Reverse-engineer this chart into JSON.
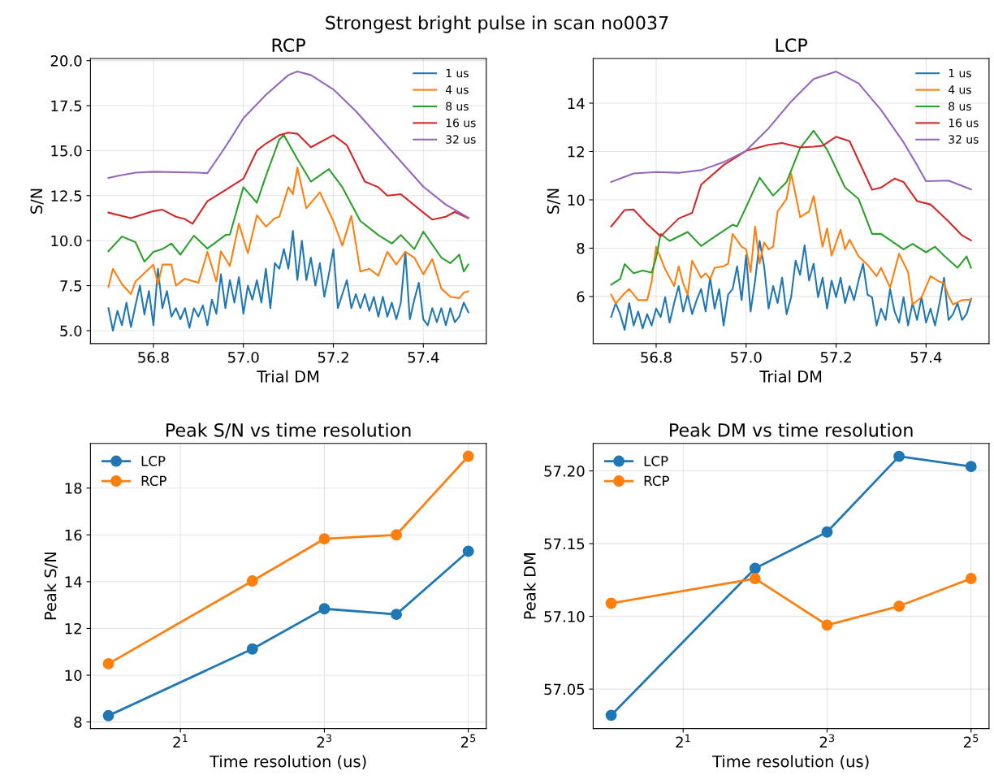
{
  "chart_data": [
    {
      "type": "line",
      "title": "RCP",
      "xlabel": "Trial DM",
      "ylabel": "S/N",
      "annotations": [
        "Strongest bright pulse in scan no0037"
      ],
      "xlim": [
        56.66,
        57.54
      ],
      "ylim": [
        4.28,
        20.12
      ],
      "xticks": [
        {
          "value": 56.8,
          "label": "56.8"
        },
        {
          "value": 57,
          "label": "57.0"
        },
        {
          "value": 57.2,
          "label": "57.2"
        },
        {
          "value": 57.4,
          "label": "57.4"
        }
      ],
      "yticks": [
        {
          "value": 5,
          "label": "5.0"
        },
        {
          "value": 7.5,
          "label": "7.5"
        },
        {
          "value": 10,
          "label": "10.0"
        },
        {
          "value": 12.5,
          "label": "12.5"
        },
        {
          "value": 15,
          "label": "15.0"
        },
        {
          "value": 17.5,
          "label": "17.5"
        },
        {
          "value": 20,
          "label": "20.0"
        }
      ],
      "grid": true,
      "legend": "top right",
      "marker": "none",
      "line_style": "solid",
      "series": [
        {
          "name": "1 us",
          "color": "#1f77b4",
          "x": [
            56.7,
            56.71,
            56.72,
            56.73,
            56.74,
            56.75,
            56.76,
            56.77,
            56.78,
            56.79,
            56.8,
            56.81,
            56.82,
            56.83,
            56.84,
            56.85,
            56.86,
            56.87,
            56.88,
            56.89,
            56.9,
            56.91,
            56.92,
            56.93,
            56.94,
            56.95,
            56.96,
            56.97,
            56.98,
            56.99,
            57.0,
            57.01,
            57.02,
            57.03,
            57.04,
            57.05,
            57.06,
            57.07,
            57.08,
            57.09,
            57.1,
            57.11,
            57.12,
            57.13,
            57.14,
            57.15,
            57.16,
            57.17,
            57.18,
            57.19,
            57.2,
            57.21,
            57.22,
            57.23,
            57.24,
            57.25,
            57.26,
            57.27,
            57.28,
            57.29,
            57.3,
            57.31,
            57.32,
            57.33,
            57.34,
            57.35,
            57.36,
            57.37,
            57.38,
            57.39,
            57.4,
            57.41,
            57.42,
            57.43,
            57.44,
            57.45,
            57.46,
            57.47,
            57.48,
            57.49,
            57.5
          ],
          "values": [
            6.25,
            5.0,
            6.1,
            5.3,
            6.56,
            5.2,
            6.4,
            7.5,
            5.9,
            7.2,
            5.3,
            8.44,
            6.25,
            7.2,
            5.78,
            6.25,
            5.63,
            6.25,
            5.16,
            6.25,
            5.78,
            6.4,
            5.3,
            6.72,
            5.94,
            8.13,
            6.25,
            7.81,
            6.56,
            7.97,
            5.94,
            7.5,
            6.72,
            7.81,
            6.56,
            8.44,
            6.25,
            8.75,
            8.44,
            9.53,
            8.44,
            10.55,
            7.81,
            10.0,
            7.81,
            9.06,
            7.5,
            8.75,
            6.88,
            8.13,
            9.53,
            6.25,
            7.03,
            7.81,
            6.25,
            7.03,
            6.25,
            7.03,
            6.1,
            6.88,
            5.78,
            6.88,
            5.78,
            6.56,
            5.63,
            6.56,
            9.38,
            5.63,
            6.72,
            7.66,
            5.63,
            5.3,
            6.25,
            5.47,
            6.25,
            5.3,
            6.25,
            5.47,
            5.78,
            6.56,
            6.02
          ]
        },
        {
          "name": "4 us",
          "color": "#ff7f0e",
          "x": [
            56.7,
            56.71,
            56.73,
            56.75,
            56.76,
            56.78,
            56.8,
            56.81,
            56.82,
            56.84,
            56.85,
            56.87,
            56.9,
            56.92,
            56.94,
            56.95,
            56.97,
            56.99,
            57.01,
            57.03,
            57.05,
            57.07,
            57.08,
            57.1,
            57.11,
            57.12,
            57.14,
            57.17,
            57.2,
            57.22,
            57.24,
            57.26,
            57.28,
            57.3,
            57.32,
            57.34,
            57.36,
            57.38,
            57.4,
            57.42,
            57.44,
            57.46,
            57.48,
            57.49,
            57.5
          ],
          "values": [
            7.42,
            8.44,
            7.58,
            7.03,
            7.73,
            8.2,
            8.67,
            7.58,
            8.67,
            8.67,
            7.5,
            7.89,
            7.66,
            9.38,
            7.73,
            9.41,
            8.59,
            10.94,
            9.3,
            11.41,
            10.78,
            11.25,
            11.33,
            12.97,
            12.58,
            14.06,
            11.8,
            12.69,
            11.09,
            9.72,
            11.38,
            8.28,
            8.44,
            8.05,
            9.38,
            8.67,
            9.38,
            9.06,
            8.13,
            8.98,
            7.34,
            6.88,
            6.8,
            7.11,
            7.19
          ]
        },
        {
          "name": "8 us",
          "color": "#2ca02c",
          "x": [
            56.7,
            56.73,
            56.76,
            56.78,
            56.8,
            56.82,
            56.84,
            56.86,
            56.89,
            56.92,
            56.96,
            56.97,
            57.0,
            57.03,
            57.05,
            57.08,
            57.09,
            57.12,
            57.15,
            57.19,
            57.22,
            57.26,
            57.28,
            57.3,
            57.33,
            57.35,
            57.38,
            57.4,
            57.44,
            57.46,
            57.48,
            57.49,
            57.5
          ],
          "values": [
            9.41,
            10.23,
            9.92,
            8.83,
            9.38,
            9.53,
            9.84,
            9.22,
            10.28,
            9.56,
            10.31,
            10.34,
            12.97,
            12.11,
            13.59,
            15.63,
            15.86,
            14.53,
            13.28,
            13.98,
            12.97,
            11.09,
            10.7,
            10.31,
            9.84,
            10.31,
            9.53,
            10.5,
            9.06,
            8.75,
            9.22,
            8.28,
            8.67
          ]
        },
        {
          "name": "16 us",
          "color": "#d62728",
          "x": [
            56.7,
            56.75,
            56.8,
            56.82,
            56.85,
            56.87,
            56.887,
            56.92,
            56.95,
            57.0,
            57.03,
            57.05,
            57.08,
            57.1,
            57.12,
            57.15,
            57.2,
            57.23,
            57.27,
            57.3,
            57.32,
            57.35,
            57.4,
            57.42,
            57.45,
            57.47,
            57.5
          ],
          "values": [
            11.56,
            11.25,
            11.64,
            11.72,
            11.33,
            11.2,
            10.94,
            12.19,
            12.66,
            13.44,
            15.0,
            15.39,
            15.86,
            16.0,
            15.94,
            15.19,
            15.86,
            15.31,
            13.28,
            12.97,
            12.5,
            12.58,
            11.56,
            11.17,
            11.33,
            11.6,
            11.25
          ]
        },
        {
          "name": "32 us",
          "color": "#9467bd",
          "x": [
            56.7,
            56.72,
            56.76,
            56.8,
            56.9,
            56.92,
            56.95,
            56.97,
            57.0,
            57.05,
            57.1,
            57.12,
            57.15,
            57.2,
            57.25,
            57.3,
            57.35,
            57.4,
            57.45,
            57.5
          ],
          "values": [
            13.48,
            13.6,
            13.78,
            13.83,
            13.78,
            13.75,
            14.84,
            15.6,
            16.8,
            18.1,
            19.2,
            19.4,
            19.2,
            18.4,
            17.2,
            15.8,
            14.4,
            13.0,
            12.0,
            11.28
          ]
        }
      ]
    },
    {
      "type": "line",
      "title": "LCP",
      "xlabel": "Trial DM",
      "ylabel": "S/N",
      "xlim": [
        56.66,
        57.54
      ],
      "ylim": [
        4.05,
        15.85
      ],
      "xticks": [
        {
          "value": 56.8,
          "label": "56.8"
        },
        {
          "value": 57,
          "label": "57.0"
        },
        {
          "value": 57.2,
          "label": "57.2"
        },
        {
          "value": 57.4,
          "label": "57.4"
        }
      ],
      "yticks": [
        6,
        8,
        10,
        12,
        14
      ],
      "grid": true,
      "legend": "top right",
      "marker": "none",
      "line_style": "solid",
      "series": [
        {
          "name": "1 us",
          "color": "#1f77b4",
          "x": [
            56.7,
            56.71,
            56.72,
            56.73,
            56.74,
            56.75,
            56.76,
            56.77,
            56.78,
            56.79,
            56.8,
            56.81,
            56.82,
            56.83,
            56.84,
            56.85,
            56.86,
            56.87,
            56.88,
            56.89,
            56.9,
            56.91,
            56.92,
            56.93,
            56.94,
            56.95,
            56.96,
            56.97,
            56.98,
            56.99,
            57.0,
            57.01,
            57.02,
            57.03,
            57.04,
            57.05,
            57.06,
            57.07,
            57.08,
            57.09,
            57.1,
            57.11,
            57.12,
            57.13,
            57.14,
            57.15,
            57.16,
            57.17,
            57.18,
            57.19,
            57.2,
            57.21,
            57.22,
            57.23,
            57.24,
            57.25,
            57.26,
            57.27,
            57.28,
            57.29,
            57.3,
            57.31,
            57.32,
            57.33,
            57.34,
            57.35,
            57.36,
            57.37,
            57.38,
            57.39,
            57.4,
            57.41,
            57.42,
            57.43,
            57.44,
            57.45,
            57.46,
            57.47,
            57.48,
            57.49,
            57.5
          ],
          "values": [
            5.15,
            5.73,
            5.27,
            4.62,
            5.73,
            4.8,
            5.38,
            4.68,
            5.27,
            4.8,
            5.5,
            5.15,
            5.97,
            4.92,
            5.73,
            6.43,
            5.38,
            6.08,
            5.27,
            5.85,
            6.31,
            5.38,
            6.78,
            5.5,
            6.31,
            4.8,
            6.08,
            6.31,
            7.25,
            5.85,
            7.71,
            5.38,
            6.66,
            8.3,
            7.25,
            5.5,
            6.43,
            5.73,
            6.78,
            5.27,
            5.97,
            7.48,
            6.9,
            8.12,
            6.66,
            7.36,
            5.97,
            6.78,
            5.5,
            6.66,
            5.97,
            6.78,
            5.73,
            6.43,
            5.85,
            6.66,
            7.36,
            6.08,
            5.97,
            4.8,
            5.5,
            5.03,
            6.31,
            5.38,
            4.92,
            5.97,
            4.8,
            5.73,
            5.03,
            5.97,
            4.92,
            5.5,
            4.8,
            5.73,
            6.78,
            5.03,
            5.27,
            5.73,
            5.03,
            5.27,
            5.9
          ]
        },
        {
          "name": "4 us",
          "color": "#ff7f0e",
          "x": [
            56.7,
            56.71,
            56.73,
            56.74,
            56.76,
            56.78,
            56.79,
            56.8,
            56.82,
            56.84,
            56.85,
            56.86,
            56.87,
            56.88,
            56.9,
            56.91,
            56.92,
            56.93,
            56.95,
            56.96,
            56.97,
            56.99,
            57.0,
            57.01,
            57.02,
            57.03,
            57.04,
            57.05,
            57.06,
            57.07,
            57.09,
            57.1,
            57.11,
            57.12,
            57.14,
            57.15,
            57.17,
            57.18,
            57.19,
            57.21,
            57.22,
            57.23,
            57.25,
            57.27,
            57.29,
            57.3,
            57.32,
            57.34,
            57.36,
            57.37,
            57.39,
            57.41,
            57.43,
            57.44,
            57.45,
            57.46,
            57.48,
            57.5
          ],
          "values": [
            6.08,
            5.71,
            6.14,
            6.31,
            5.85,
            5.85,
            6.61,
            8.06,
            7.13,
            6.43,
            7.25,
            6.55,
            6.08,
            7.48,
            6.78,
            6.96,
            6.72,
            7.19,
            7.25,
            7.36,
            8.59,
            8.06,
            7.95,
            7.01,
            8.9,
            7.36,
            8.24,
            7.95,
            8.06,
            9.52,
            10.04,
            11.09,
            10.22,
            9.29,
            9.52,
            10.16,
            8.06,
            8.82,
            7.69,
            8.76,
            7.95,
            8.35,
            7.66,
            7.31,
            6.84,
            7.19,
            6.37,
            7.77,
            7.01,
            5.67,
            5.97,
            6.84,
            6.61,
            6.55,
            6.02,
            5.67,
            5.85,
            5.87
          ]
        },
        {
          "name": "8 us",
          "color": "#2ca02c",
          "x": [
            56.7,
            56.72,
            56.73,
            56.75,
            56.77,
            56.79,
            56.8,
            56.81,
            56.83,
            56.87,
            56.9,
            56.93,
            56.97,
            56.98,
            57.03,
            57.06,
            57.09,
            57.12,
            57.15,
            57.18,
            57.22,
            57.25,
            57.28,
            57.3,
            57.35,
            57.37,
            57.4,
            57.42,
            57.44,
            57.47,
            57.49,
            57.5
          ],
          "values": [
            6.49,
            6.72,
            7.34,
            6.96,
            7.07,
            6.99,
            7.6,
            8.59,
            8.3,
            8.67,
            8.09,
            8.47,
            8.97,
            8.9,
            10.92,
            10.18,
            10.74,
            12.14,
            12.86,
            12.08,
            10.51,
            10.04,
            8.59,
            8.59,
            7.95,
            8.18,
            7.83,
            8.06,
            7.69,
            7.19,
            7.66,
            7.19
          ]
        },
        {
          "name": "16 us",
          "color": "#d62728",
          "x": [
            56.7,
            56.73,
            56.75,
            56.78,
            56.81,
            56.85,
            56.88,
            56.9,
            56.95,
            57.0,
            57.05,
            57.08,
            57.12,
            57.15,
            57.17,
            57.2,
            57.23,
            57.28,
            57.3,
            57.33,
            57.35,
            57.38,
            57.41,
            57.45,
            57.48,
            57.5
          ],
          "values": [
            8.9,
            9.58,
            9.6,
            9.0,
            8.49,
            9.23,
            9.46,
            10.63,
            11.44,
            12.03,
            12.28,
            12.35,
            12.17,
            12.2,
            12.24,
            12.61,
            12.43,
            10.42,
            10.51,
            10.88,
            10.74,
            9.95,
            9.81,
            9.11,
            8.53,
            8.32
          ]
        },
        {
          "name": "32 us",
          "color": "#9467bd",
          "x": [
            56.7,
            56.75,
            56.8,
            56.85,
            56.9,
            56.95,
            57.0,
            57.05,
            57.1,
            57.15,
            57.2,
            57.25,
            57.3,
            57.35,
            57.38,
            57.4,
            57.45,
            57.5
          ],
          "values": [
            10.74,
            11.09,
            11.15,
            11.12,
            11.23,
            11.56,
            12.03,
            12.96,
            14.07,
            15.0,
            15.31,
            14.82,
            13.72,
            12.38,
            11.44,
            10.77,
            10.8,
            10.43
          ]
        }
      ]
    },
    {
      "type": "line",
      "title": "Peak S/N vs time resolution",
      "xlabel": "Time resolution (us)",
      "ylabel": "Peak S/N",
      "log": "x",
      "xlim": [
        0.841,
        38.05
      ],
      "ylim": [
        7.72,
        19.91
      ],
      "xticks": [
        {
          "value": 2,
          "label": "2$^{1}$"
        },
        {
          "value": 8,
          "label": "2$^{3}$"
        },
        {
          "value": 32,
          "label": "2$^{5}$"
        }
      ],
      "yticks": [
        8,
        10,
        12,
        14,
        16,
        18
      ],
      "grid": true,
      "legend": "top left",
      "marker": "circle",
      "line_style": "solid",
      "series": [
        {
          "name": "LCP",
          "color": "#1f77b4",
          "x": [
            1,
            4,
            8,
            16,
            32
          ],
          "values": [
            8.27,
            11.12,
            12.84,
            12.6,
            15.3
          ]
        },
        {
          "name": "RCP",
          "color": "#ff7f0e",
          "x": [
            1,
            4,
            8,
            16,
            32
          ],
          "values": [
            10.49,
            14.03,
            15.83,
            16.0,
            19.36
          ]
        }
      ]
    },
    {
      "type": "line",
      "title": "Peak DM vs time resolution",
      "xlabel": "Time resolution (us)",
      "ylabel": "Peak DM",
      "log": "x",
      "xlim": [
        0.841,
        38.05
      ],
      "ylim": [
        57.0229,
        57.2189
      ],
      "xticks": [
        {
          "value": 2,
          "label": "2$^{1}$"
        },
        {
          "value": 8,
          "label": "2$^{3}$"
        },
        {
          "value": 32,
          "label": "2$^{5}$"
        }
      ],
      "yticks": [
        {
          "value": 57.05,
          "label": "57.05"
        },
        {
          "value": 57.1,
          "label": "57.10"
        },
        {
          "value": 57.15,
          "label": "57.15"
        },
        {
          "value": 57.2,
          "label": "57.20"
        }
      ],
      "grid": true,
      "legend": "top left",
      "marker": "circle",
      "line_style": "solid",
      "series": [
        {
          "name": "LCP",
          "color": "#1f77b4",
          "x": [
            1,
            4,
            8,
            16,
            32
          ],
          "values": [
            57.032,
            57.133,
            57.158,
            57.21,
            57.203
          ]
        },
        {
          "name": "RCP",
          "color": "#ff7f0e",
          "x": [
            1,
            4,
            8,
            16,
            32
          ],
          "values": [
            57.109,
            57.126,
            57.094,
            57.107,
            57.126
          ]
        }
      ]
    }
  ]
}
